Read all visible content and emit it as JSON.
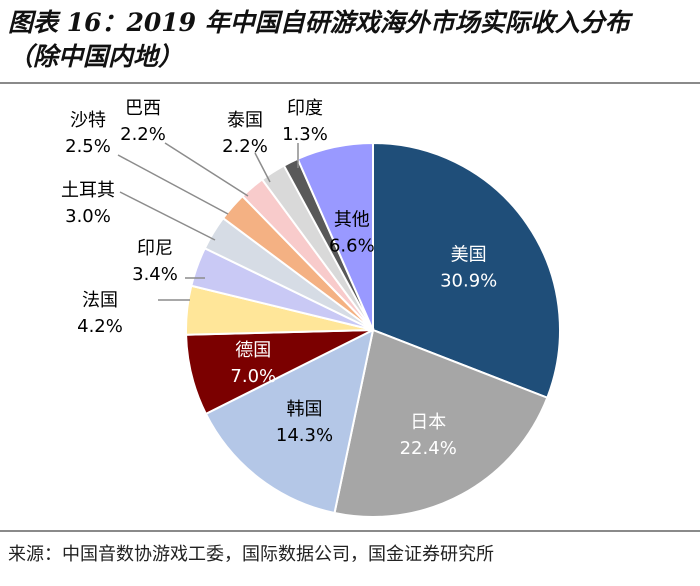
{
  "header": {
    "title_line1": "图表 16：2019 年中国自研游戏海外市场实际收入分布",
    "title_line2": "（除中国内地）"
  },
  "footer": {
    "source": "来源：中国音数协游戏工委，国际数据公司，国金证券研究所"
  },
  "chart_data": {
    "type": "pie",
    "title": "2019 年中国自研游戏海外市场实际收入分布（除中国内地）",
    "unit": "%",
    "slices": [
      {
        "name": "美国",
        "value": 30.9,
        "label": "30.9%",
        "color": "#1f4e79",
        "text_color": "#ffffff"
      },
      {
        "name": "日本",
        "value": 22.4,
        "label": "22.4%",
        "color": "#a6a6a6",
        "text_color": "#ffffff"
      },
      {
        "name": "韩国",
        "value": 14.3,
        "label": "14.3%",
        "color": "#b4c7e7",
        "text_color": "#000000"
      },
      {
        "name": "德国",
        "value": 7.0,
        "label": "7.0%",
        "color": "#7b0000",
        "text_color": "#ffffff"
      },
      {
        "name": "法国",
        "value": 4.2,
        "label": "4.2%",
        "color": "#ffe699",
        "text_color": "#000000"
      },
      {
        "name": "印尼",
        "value": 3.4,
        "label": "3.4%",
        "color": "#c9c9f5",
        "text_color": "#000000"
      },
      {
        "name": "土耳其",
        "value": 3.0,
        "label": "3.0%",
        "color": "#d6dce5",
        "text_color": "#000000"
      },
      {
        "name": "沙特",
        "value": 2.5,
        "label": "2.5%",
        "color": "#f4b183",
        "text_color": "#000000"
      },
      {
        "name": "巴西",
        "value": 2.2,
        "label": "2.2%",
        "color": "#f8cbcb",
        "text_color": "#000000"
      },
      {
        "name": "泰国",
        "value": 2.2,
        "label": "2.2%",
        "color": "#d9d9d9",
        "text_color": "#000000"
      },
      {
        "name": "印度",
        "value": 1.3,
        "label": "1.3%",
        "color": "#595959",
        "text_color": "#000000"
      },
      {
        "name": "其他",
        "value": 6.6,
        "label": "6.6%",
        "color": "#9999ff",
        "text_color": "#000000"
      }
    ]
  }
}
